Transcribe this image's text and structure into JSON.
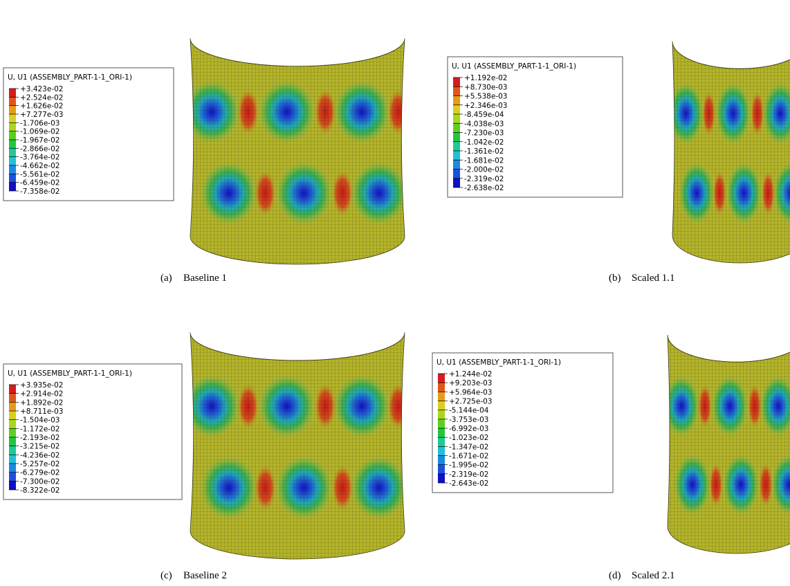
{
  "panels": [
    {
      "legend": {
        "title": "U, U1 (ASSEMBLY_PART-1-1_ORI-1)",
        "labels": [
          "+3.423e-02",
          "+2.524e-02",
          "+1.626e-02",
          "+7.277e-03",
          "-1.706e-03",
          "-1.069e-02",
          "-1.967e-02",
          "-2.866e-02",
          "-3.764e-02",
          "-4.662e-02",
          "-5.561e-02",
          "-6.459e-02",
          "-7.358e-02"
        ]
      },
      "caption": {
        "label": "(a)",
        "text": "Baseline 1"
      }
    },
    {
      "legend": {
        "title": "U, U1 (ASSEMBLY_PART-1-1_ORI-1)",
        "labels": [
          "+1.192e-02",
          "+8.730e-03",
          "+5.538e-03",
          "+2.346e-03",
          "-8.459e-04",
          "-4.038e-03",
          "-7.230e-03",
          "-1.042e-02",
          "-1.361e-02",
          "-1.681e-02",
          "-2.000e-02",
          "-2.319e-02",
          "-2.638e-02"
        ]
      },
      "caption": {
        "label": "(b)",
        "text": "Scaled 1.1"
      }
    },
    {
      "legend": {
        "title": "U, U1 (ASSEMBLY_PART-1-1_ORI-1)",
        "labels": [
          "+3.935e-02",
          "+2.914e-02",
          "+1.892e-02",
          "+8.711e-03",
          "-1.504e-03",
          "-1.172e-02",
          "-2.193e-02",
          "-3.215e-02",
          "-4.236e-02",
          "-5.257e-02",
          "-6.279e-02",
          "-7.300e-02",
          "-8.322e-02"
        ]
      },
      "caption": {
        "label": "(c)",
        "text": "Baseline 2"
      }
    },
    {
      "legend": {
        "title": "U, U1 (ASSEMBLY_PART-1-1_ORI-1)",
        "labels": [
          "+1.244e-02",
          "+9.203e-03",
          "+5.964e-03",
          "+2.725e-03",
          "-5.144e-04",
          "-3.753e-03",
          "-6.992e-03",
          "-1.023e-02",
          "-1.347e-02",
          "-1.671e-02",
          "-1.995e-02",
          "-2.319e-02",
          "-2.643e-02"
        ]
      },
      "caption": {
        "label": "(d)",
        "text": "Scaled 2.1"
      }
    }
  ]
}
